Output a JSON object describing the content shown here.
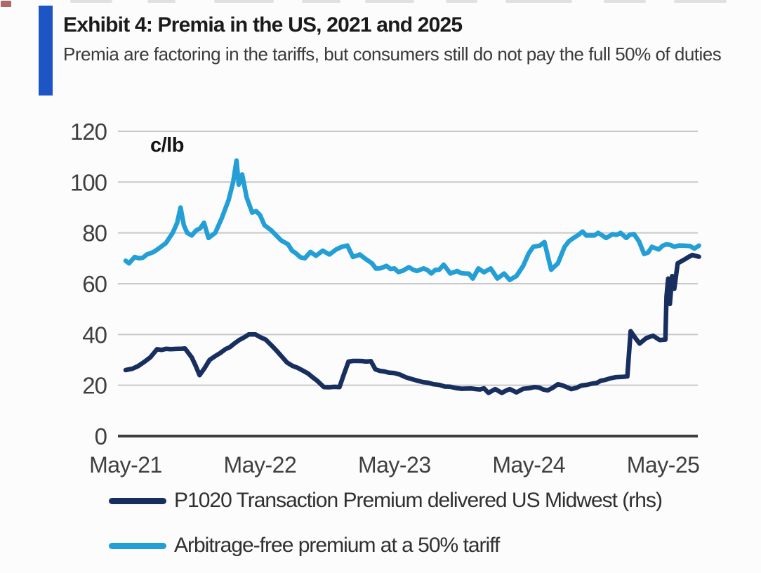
{
  "chart_data": {
    "type": "line",
    "title": "Exhibit 4: Premia in the US, 2021 and 2025",
    "subtitle": "Premia are factoring in the tariffs, but consumers still do not pay the full 50% of duties",
    "unit_label": "c/lb",
    "xlabel": "",
    "ylabel": "c/lb",
    "ylim": [
      0,
      120
    ],
    "y_ticks": [
      0,
      20,
      40,
      60,
      80,
      100,
      120
    ],
    "x_unit": "months since May-2021",
    "x_ticks": [
      {
        "label": "May-21",
        "m": 0
      },
      {
        "label": "May-22",
        "m": 12
      },
      {
        "label": "May-23",
        "m": 24
      },
      {
        "label": "May-24",
        "m": 36
      },
      {
        "label": "May-25",
        "m": 48
      }
    ],
    "grid": "horizontal",
    "legend_position": "bottom-left",
    "series": [
      {
        "name": "P1020 Transaction Premium delivered US Midwest (rhs)",
        "color": "#182e5e",
        "jitter": 0.3,
        "points": [
          [
            0,
            26
          ],
          [
            0.6,
            26.5
          ],
          [
            1.1,
            27.5
          ],
          [
            1.6,
            29
          ],
          [
            2.2,
            31
          ],
          [
            2.8,
            34.2
          ],
          [
            4,
            34.2
          ],
          [
            5,
            34.4
          ],
          [
            5.3,
            34.5
          ],
          [
            5.9,
            31
          ],
          [
            6.6,
            24
          ],
          [
            7.5,
            30
          ],
          [
            8.9,
            34.2
          ],
          [
            9.7,
            36.4
          ],
          [
            10.6,
            38.9
          ],
          [
            11,
            40
          ],
          [
            11.6,
            40
          ],
          [
            12.5,
            38
          ],
          [
            13.5,
            33.5
          ],
          [
            14.4,
            29
          ],
          [
            15.4,
            26.8
          ],
          [
            16.3,
            24.6
          ],
          [
            17.1,
            21.8
          ],
          [
            17.7,
            19.3
          ],
          [
            19.1,
            19.3
          ],
          [
            19.9,
            29.3
          ],
          [
            21.9,
            29.5
          ],
          [
            22.3,
            26.3
          ],
          [
            23.5,
            25
          ],
          [
            24.5,
            24.2
          ],
          [
            25.5,
            22.5
          ],
          [
            26.5,
            21.3
          ],
          [
            27.5,
            20.4
          ],
          [
            28.5,
            19.5
          ],
          [
            29.5,
            18.9
          ],
          [
            30.5,
            18.7
          ],
          [
            31.3,
            18.5
          ],
          [
            32,
            18.8
          ],
          [
            32.4,
            17
          ],
          [
            33,
            18.5
          ],
          [
            33.6,
            17
          ],
          [
            34.3,
            18.5
          ],
          [
            34.9,
            17.2
          ],
          [
            35.5,
            18.6
          ],
          [
            36.5,
            19.3
          ],
          [
            37.7,
            18
          ],
          [
            38.6,
            20.4
          ],
          [
            39.8,
            18.5
          ],
          [
            40.7,
            19.9
          ],
          [
            41.7,
            20.7
          ],
          [
            42.8,
            22.1
          ],
          [
            43.8,
            23.2
          ],
          [
            44.8,
            23.5
          ],
          [
            45.1,
            41.3
          ],
          [
            45.9,
            36.4
          ],
          [
            46.5,
            38.6
          ],
          [
            47.1,
            39.5
          ],
          [
            47.7,
            37.8
          ],
          [
            48.2,
            38
          ],
          [
            48.3,
            55
          ],
          [
            48.45,
            62
          ],
          [
            48.6,
            52
          ],
          [
            48.8,
            63
          ],
          [
            49,
            58
          ],
          [
            49.3,
            68
          ],
          [
            49.9,
            69.5
          ],
          [
            50.6,
            71.3
          ],
          [
            51.2,
            70.6
          ]
        ]
      },
      {
        "name": "Arbitrage-free premium at a 50% tariff",
        "color": "#239fd6",
        "jitter": 1.1,
        "points": [
          [
            0,
            69
          ],
          [
            0.3,
            68
          ],
          [
            0.8,
            70.5
          ],
          [
            1.2,
            70
          ],
          [
            1.9,
            71.5
          ],
          [
            2.5,
            72.5
          ],
          [
            3,
            74
          ],
          [
            3.6,
            76
          ],
          [
            4.2,
            80
          ],
          [
            4.6,
            84
          ],
          [
            4.9,
            90
          ],
          [
            5.2,
            83
          ],
          [
            5.5,
            80
          ],
          [
            5.9,
            79
          ],
          [
            6.3,
            81
          ],
          [
            7,
            84
          ],
          [
            7.4,
            78
          ],
          [
            8,
            80
          ],
          [
            8.6,
            86
          ],
          [
            9.2,
            93
          ],
          [
            9.6,
            100
          ],
          [
            9.9,
            108.5
          ],
          [
            10.1,
            99
          ],
          [
            10.4,
            103
          ],
          [
            10.8,
            94
          ],
          [
            11.3,
            88
          ],
          [
            12,
            87
          ],
          [
            12.4,
            83
          ],
          [
            13,
            81
          ],
          [
            13.9,
            77
          ],
          [
            14.5,
            75.5
          ],
          [
            15.2,
            72
          ],
          [
            16,
            70
          ],
          [
            16.5,
            72.5
          ],
          [
            17,
            71
          ],
          [
            17.6,
            73
          ],
          [
            18.2,
            71.5
          ],
          [
            18.8,
            73.5
          ],
          [
            19.3,
            74.5
          ],
          [
            19.8,
            75
          ],
          [
            20.3,
            70.5
          ],
          [
            20.9,
            71.5
          ],
          [
            21.5,
            69.5
          ],
          [
            22,
            68
          ],
          [
            22.7,
            66
          ],
          [
            23.3,
            67
          ],
          [
            24,
            66
          ],
          [
            24.7,
            65
          ],
          [
            25.3,
            66.5
          ],
          [
            26,
            65
          ],
          [
            26.6,
            66
          ],
          [
            27.3,
            64
          ],
          [
            28,
            65.5
          ],
          [
            28.4,
            67.5
          ],
          [
            29,
            64
          ],
          [
            29.6,
            65
          ],
          [
            30.3,
            64
          ],
          [
            31,
            62
          ],
          [
            31.5,
            66
          ],
          [
            32,
            64.5
          ],
          [
            32.6,
            66
          ],
          [
            33.2,
            62
          ],
          [
            33.8,
            64
          ],
          [
            34.3,
            61.5
          ],
          [
            34.9,
            63
          ],
          [
            35.5,
            67
          ],
          [
            36,
            72
          ],
          [
            36.4,
            74.5
          ],
          [
            37,
            75
          ],
          [
            37.4,
            76.4
          ],
          [
            38,
            65.5
          ],
          [
            38.6,
            68
          ],
          [
            39.2,
            74.5
          ],
          [
            40,
            78
          ],
          [
            40.8,
            80.5
          ],
          [
            41.5,
            79
          ],
          [
            42.2,
            80
          ],
          [
            42.9,
            78
          ],
          [
            43.5,
            79.5
          ],
          [
            44.2,
            80
          ],
          [
            44.7,
            78
          ],
          [
            45.4,
            79.5
          ],
          [
            46.3,
            71.7
          ],
          [
            47,
            74.5
          ],
          [
            47.6,
            73.5
          ],
          [
            48.3,
            75.5
          ],
          [
            49,
            74.5
          ],
          [
            49.8,
            75
          ],
          [
            50.4,
            74.8
          ],
          [
            51.2,
            75
          ]
        ]
      }
    ],
    "colors": {
      "accent_bar": "#1d55c4",
      "gridline": "#c8c8c8",
      "axis": "#3e3e3e",
      "tick_text": "#3f3f3f",
      "title_text": "#1b1b1b",
      "subtitle_text": "#3a3a3a",
      "legend_text": "#303030"
    }
  }
}
